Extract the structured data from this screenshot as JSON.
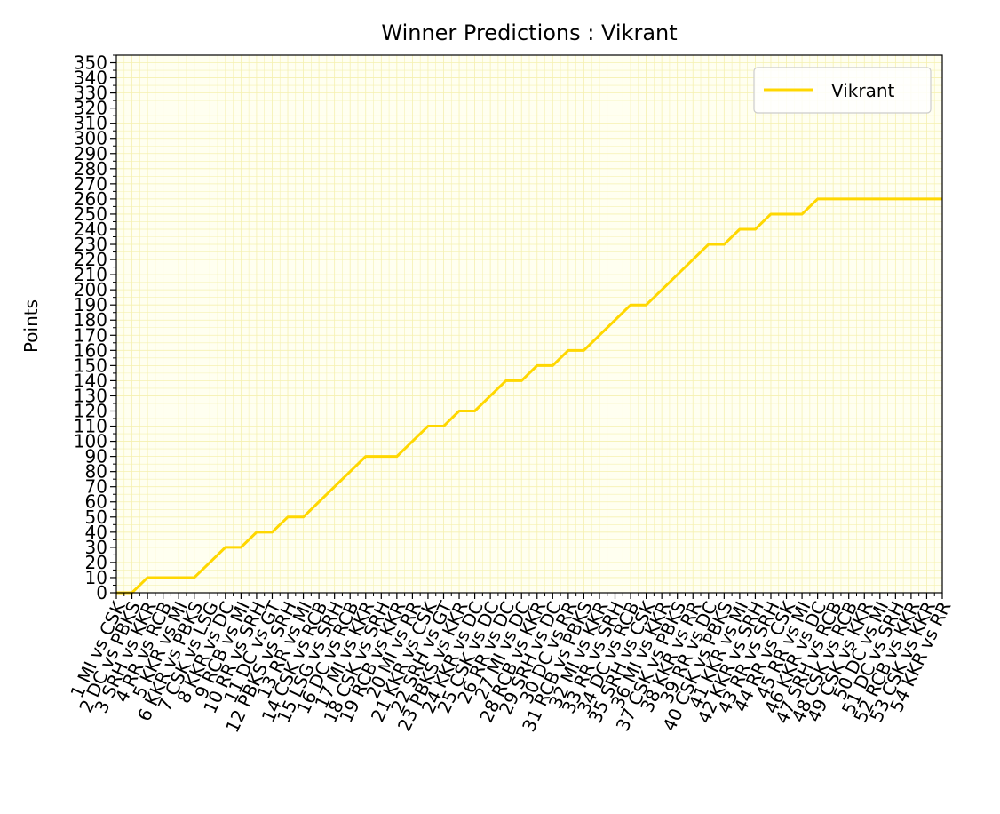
{
  "chart_data": {
    "type": "line",
    "title": "Winner Predictions : Vikrant",
    "xlabel": "",
    "ylabel": "Points",
    "ylim": [
      0,
      355
    ],
    "y_ticks": [
      0,
      10,
      20,
      30,
      40,
      50,
      60,
      70,
      80,
      90,
      100,
      110,
      120,
      130,
      140,
      150,
      160,
      170,
      180,
      190,
      200,
      210,
      220,
      230,
      240,
      250,
      260,
      270,
      280,
      290,
      300,
      310,
      320,
      330,
      340,
      350
    ],
    "grid": true,
    "legend_position": "top-right",
    "categories": [
      "1 MI vs CSK",
      "2 DC vs PBKS",
      "3 SRH vs KKR",
      "4 RR vs RCB",
      "5 KKR vs MI",
      "6 KKR vs PBKS",
      "7 CSK vs LSG",
      "8 KKR vs DC",
      "9 RCB vs MI",
      "10 RR vs SRH",
      "11 DC vs GT",
      "12 PBKS vs SRH",
      "13 RR vs MI",
      "14 CSK vs RCB",
      "15 LSG vs SRH",
      "16 DC vs RCB",
      "17 MI vs KKR",
      "18 CSK vs SRH",
      "19 RCB vs KKR",
      "20 MI vs RR",
      "21 KKR vs CSK",
      "22 SRH vs GT",
      "23 PBKS vs KKR",
      "24 KKR vs DC",
      "25 CSK vs DC",
      "26 RR vs DC",
      "27 MI vs DC",
      "28 RCB vs KKR",
      "29 SRH vs DC",
      "30 DC vs RR",
      "31 RCB vs PBKS",
      "32 MI vs KKR",
      "33 RR vs SRH",
      "34 DC vs RCB",
      "35 SRH vs CSK",
      "36 MI vs KKR",
      "37 CSK vs PBKS",
      "38 KKR vs RR",
      "39 RR vs DC",
      "40 CSK vs PBKS",
      "41 KKR vs MI",
      "42 KKR vs SRH",
      "43 RR vs SRH",
      "44 RR vs CSK",
      "45 RR vs MI",
      "46 KKR vs DC",
      "47 SRH vs RCB",
      "48 CSK vs RCB",
      "49 CSK vs KKR",
      "50 DC vs MI",
      "51 DC vs SRH",
      "52 RCB vs KKR",
      "53 CSK vs KKR",
      "54 KKR vs RR"
    ],
    "series": [
      {
        "name": "Vikrant",
        "color": "#FFD700",
        "values": [
          0,
          0,
          10,
          10,
          10,
          10,
          20,
          30,
          30,
          40,
          40,
          50,
          50,
          60,
          70,
          80,
          90,
          90,
          90,
          100,
          110,
          110,
          120,
          120,
          130,
          140,
          140,
          150,
          150,
          160,
          160,
          170,
          180,
          190,
          190,
          200,
          210,
          220,
          230,
          230,
          240,
          240,
          250,
          250,
          250,
          260,
          260,
          260,
          260,
          260,
          260,
          260,
          260,
          260
        ]
      }
    ]
  },
  "colors": {
    "plot_background": "#FFFFF0",
    "grid": "#F5F0B0",
    "line": "#FFD700"
  }
}
